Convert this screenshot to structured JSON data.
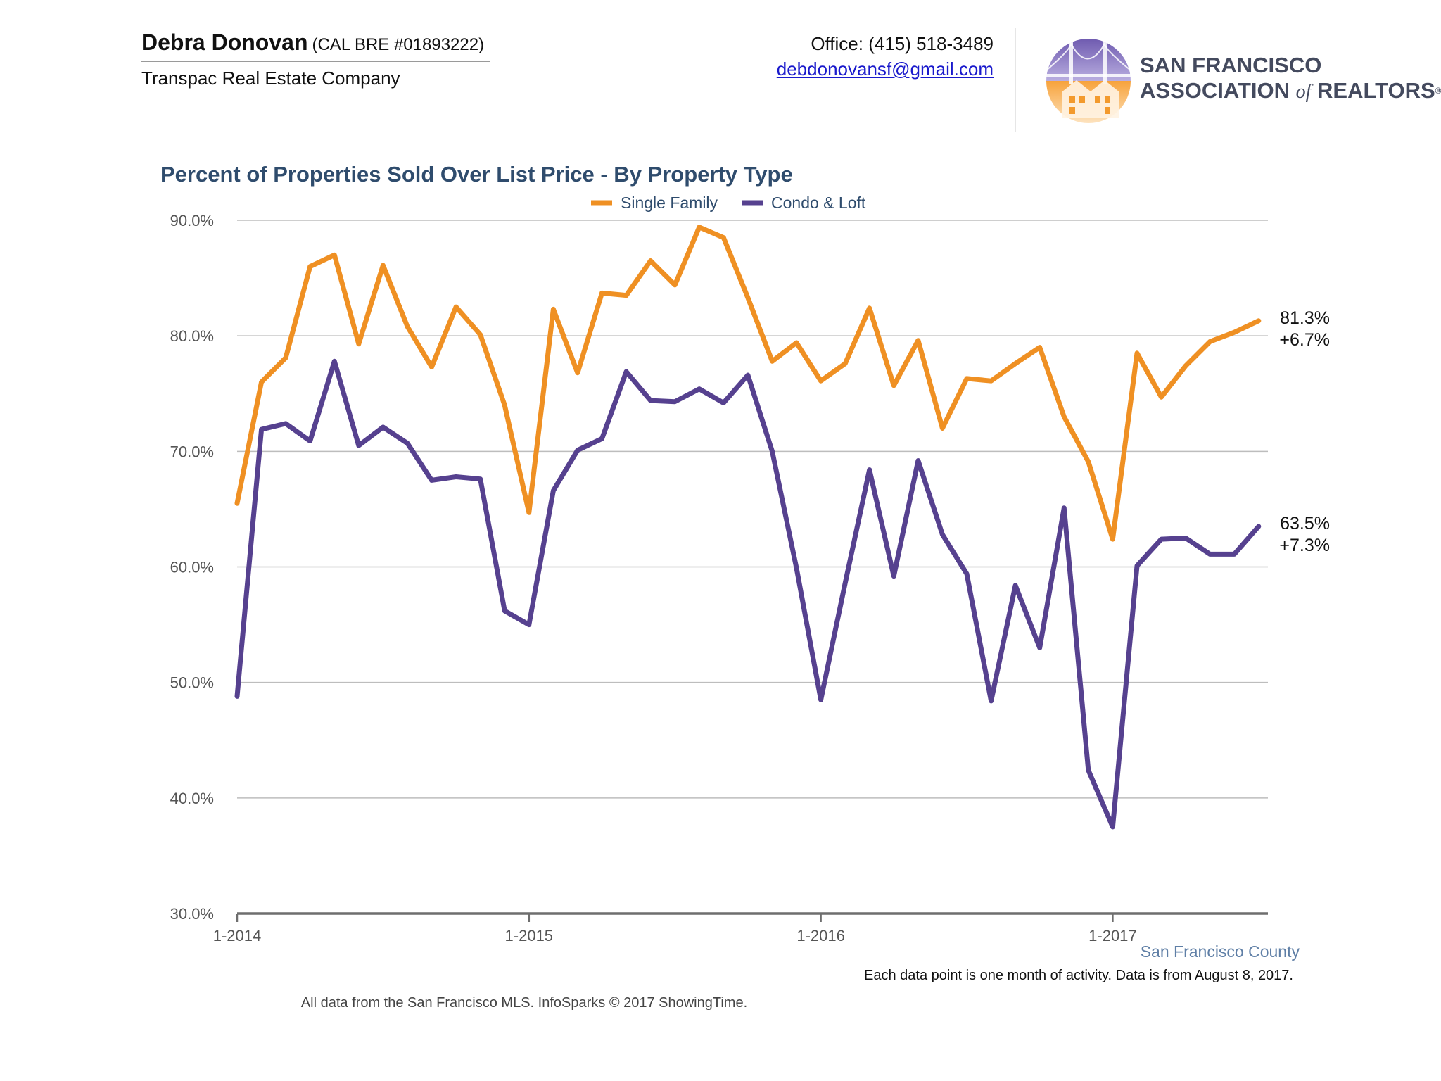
{
  "header": {
    "agent_name": "Debra Donovan",
    "agent_license": "(CAL BRE #01893222)",
    "company": "Transpac Real Estate Company",
    "office_phone": "Office: (415) 518-3489",
    "email": "debdonovansf@gmail.com",
    "logo_line1": "SAN FRANCISCO",
    "logo_line2_a": "ASSOCIATION",
    "logo_line2_of": "of",
    "logo_line2_b": "REALTORS",
    "logo_reg": "®"
  },
  "footer": {
    "region": "San Francisco County",
    "data_note": "Each data point is one month of activity. Data is from August 8, 2017.",
    "source_note": "All data from the San Francisco MLS. InfoSparks © 2017 ShowingTime."
  },
  "colors": {
    "single_family": "#ef9023",
    "condo_loft": "#56418f",
    "title": "#2f4c6d",
    "grid": "#bdbdbd",
    "axis": "#6e6e6e"
  },
  "chart_data": {
    "type": "line",
    "title": "Percent of Properties Sold Over List Price - By Property Type",
    "legend_position": "top-center",
    "grid": true,
    "ylim": [
      30,
      90
    ],
    "y_ticks": [
      30,
      40,
      50,
      60,
      70,
      80,
      90
    ],
    "y_tick_labels": [
      "30.0%",
      "40.0%",
      "50.0%",
      "60.0%",
      "70.0%",
      "80.0%",
      "90.0%"
    ],
    "x_tick_labels": [
      "1-2014",
      "1-2015",
      "1-2016",
      "1-2017"
    ],
    "x_tick_months": [
      "2014-01",
      "2015-01",
      "2016-01",
      "2017-01"
    ],
    "x_range": [
      "2014-01",
      "2017-07"
    ],
    "months": [
      "2014-01",
      "2014-02",
      "2014-03",
      "2014-04",
      "2014-05",
      "2014-06",
      "2014-07",
      "2014-08",
      "2014-09",
      "2014-10",
      "2014-11",
      "2014-12",
      "2015-01",
      "2015-02",
      "2015-03",
      "2015-04",
      "2015-05",
      "2015-06",
      "2015-07",
      "2015-08",
      "2015-09",
      "2015-10",
      "2015-11",
      "2015-12",
      "2016-01",
      "2016-02",
      "2016-03",
      "2016-04",
      "2016-05",
      "2016-06",
      "2016-07",
      "2016-08",
      "2016-09",
      "2016-10",
      "2016-11",
      "2016-12",
      "2017-01",
      "2017-02",
      "2017-03",
      "2017-04",
      "2017-05",
      "2017-06",
      "2017-07"
    ],
    "series": [
      {
        "name": "Single Family",
        "color": "#ef9023",
        "values": [
          65.5,
          76.0,
          78.1,
          86.0,
          87.0,
          79.3,
          86.1,
          80.8,
          77.3,
          82.5,
          80.1,
          74.0,
          64.7,
          82.3,
          76.8,
          83.7,
          83.5,
          86.5,
          84.4,
          89.4,
          88.5,
          83.3,
          77.8,
          79.4,
          76.1,
          77.6,
          82.4,
          75.7,
          79.6,
          72.0,
          76.3,
          76.1,
          77.6,
          79.0,
          73.0,
          69.1,
          62.4,
          78.5,
          74.7,
          77.4,
          79.5,
          80.3,
          81.3
        ],
        "end_label": "81.3%",
        "end_change": "+6.7%"
      },
      {
        "name": "Condo & Loft",
        "color": "#56418f",
        "values": [
          48.8,
          71.9,
          72.4,
          70.9,
          77.8,
          70.5,
          72.1,
          70.7,
          67.5,
          67.8,
          67.6,
          56.2,
          55.0,
          66.6,
          70.1,
          71.1,
          76.9,
          74.4,
          74.3,
          75.4,
          74.2,
          76.6,
          70.0,
          59.9,
          48.5,
          58.6,
          68.4,
          59.2,
          69.2,
          62.8,
          59.4,
          48.4,
          58.4,
          53.0,
          65.1,
          42.4,
          37.5,
          60.1,
          62.4,
          62.5,
          61.1,
          61.1,
          63.5
        ],
        "end_label": "63.5%",
        "end_change": "+7.3%"
      }
    ]
  }
}
